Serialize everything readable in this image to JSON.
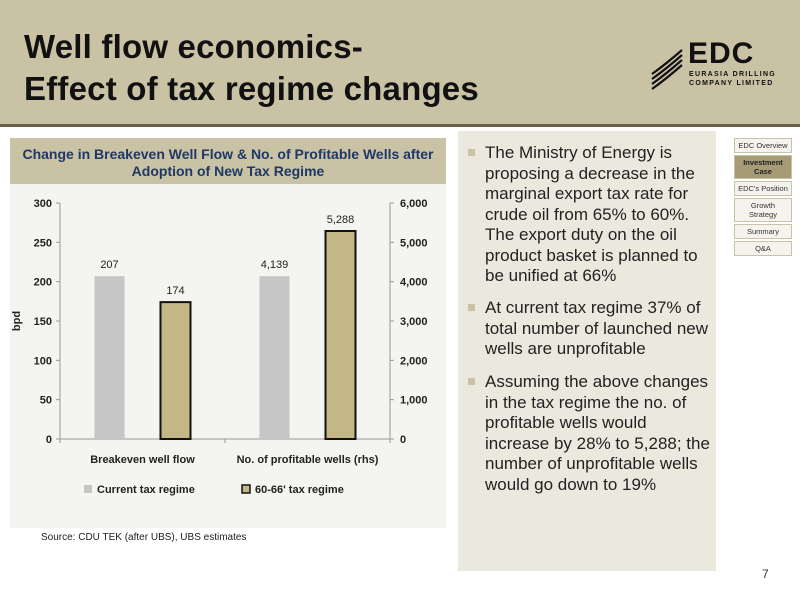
{
  "slide": {
    "title_line1": "Well flow economics-",
    "title_line2": "Effect of tax regime changes",
    "page_number": "7",
    "source": "Source: CDU TEK (after UBS), UBS estimates"
  },
  "logo": {
    "text": "EDC",
    "sub1": "EURASIA DRILLING",
    "sub2": "COMPANY LIMITED"
  },
  "nav": {
    "items": [
      {
        "label": "EDC Overview",
        "active": false
      },
      {
        "label": "Investment Case",
        "active": true
      },
      {
        "label": "EDC's Position",
        "active": false
      },
      {
        "label": "Growth Strategy",
        "active": false
      },
      {
        "label": "Summary",
        "active": false
      },
      {
        "label": "Q&A",
        "active": false
      }
    ]
  },
  "bullets": [
    "The Ministry of Energy is proposing a decrease in the marginal export tax rate for crude oil from 65% to 60%. The export duty on the oil product basket is planned to be unified at 66%",
    "At current tax regime 37% of total number of launched new wells are unprofitable",
    "Assuming the above changes in the tax regime the no. of profitable wells would increase by 28% to 5,288; the number of unprofitable wells would go down to 19%"
  ],
  "colors": {
    "header": "#c9c2a5",
    "current_bar": "#c6c6c6",
    "new_bar": "#c4b787",
    "new_bar_border": "#111111"
  },
  "chart_data": {
    "type": "bar",
    "title": "Change in Breakeven Well  Flow & No. of Profitable Wells after Adoption of New Tax Regime",
    "categories": [
      "Breakeven  well flow",
      "No. of profitable wells (rhs)"
    ],
    "series": [
      {
        "name": "Current tax regime",
        "values": [
          207,
          4139
        ],
        "labels": [
          "207",
          "4,139"
        ]
      },
      {
        "name": "60-66' tax regime",
        "values": [
          174,
          5288
        ],
        "labels": [
          "174",
          "5,288"
        ]
      }
    ],
    "bar_axis": [
      "left",
      "right"
    ],
    "ylabel": "bpd",
    "ylim_left": [
      0,
      300
    ],
    "ylim_right": [
      0,
      6000
    ],
    "left_ticks": [
      "0",
      "50",
      "100",
      "150",
      "200",
      "250",
      "300"
    ],
    "right_ticks": [
      "0",
      "1,000",
      "2,000",
      "3,000",
      "4,000",
      "5,000",
      "6,000"
    ],
    "grid": false,
    "legend_position": "bottom"
  }
}
